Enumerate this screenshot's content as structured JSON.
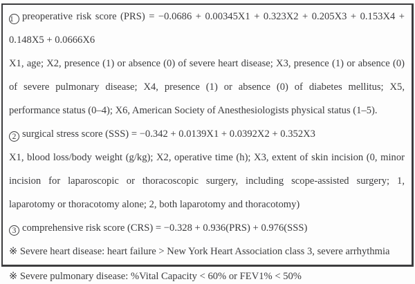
{
  "page": {
    "background_color": "#fdfdfd",
    "text_color": "#3b3b3d",
    "border_color": "#3c3c3e"
  },
  "box": {
    "paragraphs": [
      {
        "name": "prs-formula",
        "lines": [
          {
            "marker": "1",
            "text": "preoperative risk score (PRS) = −0.0686 + 0.00345X1 + 0.323X2 + 0.205X3 + 0.153X4 +",
            "justify": true
          },
          {
            "text": "0.148X5 + 0.0666X6",
            "justify": false
          }
        ]
      },
      {
        "name": "prs-variable-definitions",
        "lines": [
          {
            "text": "X1, age; X2, presence (1) or absence (0) of severe heart disease; X3, presence (1) or absence (0)",
            "justify": true
          },
          {
            "text": "of severe pulmonary disease; X4, presence (1) or absence (0) of diabetes mellitus; X5,",
            "justify": true
          },
          {
            "text": "performance status (0–4); X6, American Society of Anesthesiologists physical status (1–5).",
            "justify": false
          }
        ]
      },
      {
        "name": "sss-formula",
        "lines": [
          {
            "marker": "2",
            "text": "surgical stress score (SSS) = −0.342 + 0.0139X1 + 0.0392X2 + 0.352X3",
            "justify": false
          }
        ]
      },
      {
        "name": "sss-variable-definitions",
        "lines": [
          {
            "text": "X1, blood loss/body weight (g/kg); X2, operative time (h); X3, extent of skin incision (0, minor",
            "justify": true
          },
          {
            "text": "incision for laparoscopic or thoracoscopic surgery, including scope-assisted surgery; 1,",
            "justify": true
          },
          {
            "text": "laparotomy or thoracotomy alone; 2, both laparotomy and thoracotomy)",
            "justify": false
          }
        ]
      },
      {
        "name": "crs-formula",
        "lines": [
          {
            "marker": "3",
            "text": "comprehensive risk score (CRS) = −0.328 + 0.936(PRS) + 0.976(SSS)",
            "justify": false
          }
        ]
      },
      {
        "name": "severe-heart-disease-note",
        "lines": [
          {
            "text": "※ Severe heart disease: heart failure > New York Heart Association class 3, severe arrhythmia",
            "justify": false
          }
        ]
      }
    ]
  },
  "footnote": {
    "text": "※ Severe pulmonary disease: %Vital Capacity < 60% or FEV1% < 50%"
  }
}
